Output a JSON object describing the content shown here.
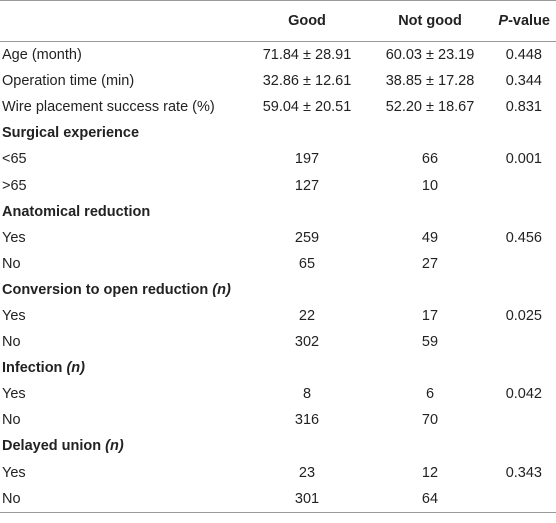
{
  "header": {
    "col_good": "Good",
    "col_not_good": "Not good",
    "col_p_italic": "P",
    "col_p_rest": "-value"
  },
  "rows": [
    {
      "type": "data",
      "label": "Age (month)",
      "good": "71.84 ± 28.91",
      "not_good": "60.03 ± 23.19",
      "p": "0.448"
    },
    {
      "type": "data",
      "label": "Operation time (min)",
      "good": "32.86 ± 12.61",
      "not_good": "38.85 ± 17.28",
      "p": "0.344"
    },
    {
      "type": "data",
      "label": "Wire placement success rate (%)",
      "good": "59.04 ± 20.51",
      "not_good": "52.20 ± 18.67",
      "p": "0.831"
    },
    {
      "type": "section",
      "label": "Surgical experience",
      "italic": ""
    },
    {
      "type": "data",
      "label": "<65",
      "good": "197",
      "not_good": "66",
      "p": "0.001"
    },
    {
      "type": "data",
      "label": ">65",
      "good": "127",
      "not_good": "10",
      "p": ""
    },
    {
      "type": "section",
      "label": "Anatomical reduction",
      "italic": ""
    },
    {
      "type": "data",
      "label": "Yes",
      "good": "259",
      "not_good": "49",
      "p": "0.456"
    },
    {
      "type": "data",
      "label": "No",
      "good": "65",
      "not_good": "27",
      "p": ""
    },
    {
      "type": "section",
      "label": "Conversion to open reduction ",
      "italic": "(n)"
    },
    {
      "type": "data",
      "label": "Yes",
      "good": "22",
      "not_good": "17",
      "p": "0.025"
    },
    {
      "type": "data",
      "label": "No",
      "good": "302",
      "not_good": "59",
      "p": ""
    },
    {
      "type": "section",
      "label": "Infection ",
      "italic": "(n)"
    },
    {
      "type": "data",
      "label": "Yes",
      "good": "8",
      "not_good": "6",
      "p": "0.042"
    },
    {
      "type": "data",
      "label": "No",
      "good": "316",
      "not_good": "70",
      "p": ""
    },
    {
      "type": "section",
      "label": "Delayed union ",
      "italic": "(n)"
    },
    {
      "type": "data",
      "label": "Yes",
      "good": "23",
      "not_good": "12",
      "p": "0.343"
    },
    {
      "type": "data",
      "label": "No",
      "good": "301",
      "not_good": "64",
      "p": ""
    }
  ]
}
